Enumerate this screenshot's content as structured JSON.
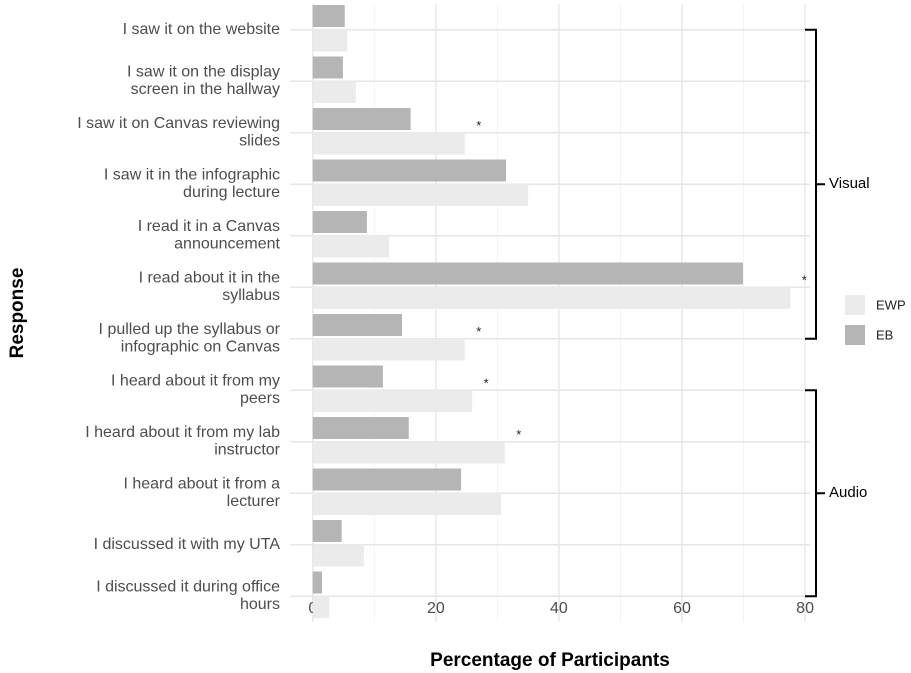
{
  "chart_data": {
    "type": "hbar",
    "x_label": "Percentage of Participants",
    "y_label": "Response",
    "categories": [
      "I saw it on the website",
      "I saw it on the display\nscreen in the hallway",
      "I saw it on Canvas reviewing\nslides",
      "I saw it in the infographic\nduring lecture",
      "I read it in a Canvas\nannouncement",
      "I read about it in the\nsyllabus",
      "I pulled up the syllabus or\ninfographic on Canvas",
      "I heard about it from my\npeers",
      "I heard about it from my lab\ninstructor",
      "I heard about it from a\nlecturer",
      "I discussed it with my UTA",
      "I discussed it during office\nhours"
    ],
    "series": [
      {
        "name": "EWP",
        "color": "#ebebeb",
        "values": [
          5.6,
          7,
          24.7,
          35,
          12.4,
          77.6,
          24.7,
          25.9,
          31.2,
          30.6,
          8.3,
          2.7
        ]
      },
      {
        "name": "EB",
        "color": "#b5b5b5",
        "values": [
          5.2,
          4.9,
          15.9,
          31.4,
          8.8,
          69.9,
          14.5,
          11.4,
          15.6,
          24.1,
          4.7,
          1.5
        ]
      }
    ],
    "significance": [
      null,
      null,
      "*",
      null,
      null,
      "*",
      "*",
      "*",
      "*",
      null,
      null,
      null
    ],
    "groups": [
      {
        "label": "Visual",
        "from": 0,
        "to": 6
      },
      {
        "label": "Audio",
        "from": 7,
        "to": 11
      }
    ],
    "xlim": [
      -3.7,
      80.8
    ],
    "xticks": [
      0,
      20,
      40,
      60,
      80
    ],
    "minor_xticks": [
      10,
      30,
      50,
      70
    ],
    "grid": true,
    "legend": "right"
  }
}
